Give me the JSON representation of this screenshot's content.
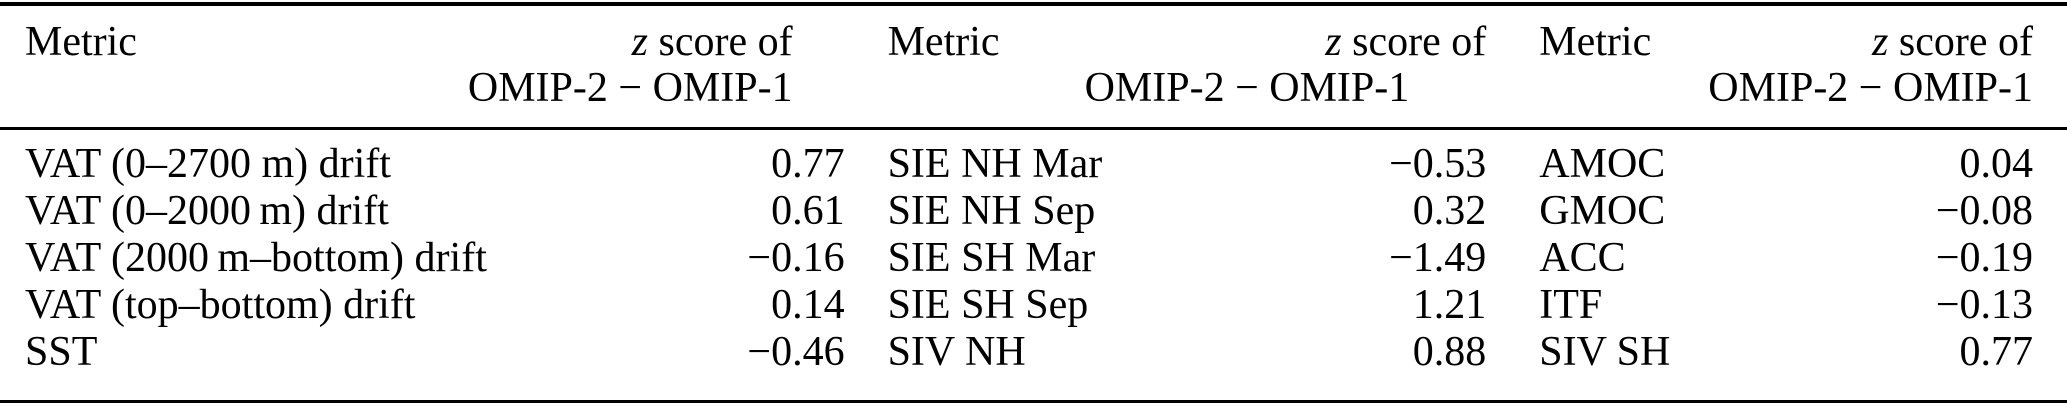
{
  "colors": {
    "background": "#ffffff",
    "text": "#000000",
    "rule": "#000000"
  },
  "table": {
    "zscore_header": {
      "z_symbol": "z",
      "line1_rest": " score of",
      "line2": "OMIP-2 − OMIP-1"
    },
    "groups": [
      {
        "metric_header": "Metric",
        "rows": [
          {
            "metric": "VAT (0–2700 m) drift",
            "value": "0.77"
          },
          {
            "metric": "VAT (0–2000 m) drift",
            "value": "0.61"
          },
          {
            "metric": "VAT (2000 m–bottom) drift",
            "value": "−0.16"
          },
          {
            "metric": "VAT (top–bottom) drift",
            "value": "0.14"
          },
          {
            "metric": "SST",
            "value": "−0.46"
          }
        ]
      },
      {
        "metric_header": "Metric",
        "rows": [
          {
            "metric": "SIE NH Mar",
            "value": "−0.53"
          },
          {
            "metric": "SIE NH Sep",
            "value": "0.32"
          },
          {
            "metric": "SIE SH Mar",
            "value": "−1.49"
          },
          {
            "metric": "SIE SH Sep",
            "value": "1.21"
          },
          {
            "metric": "SIV NH",
            "value": "0.88"
          }
        ]
      },
      {
        "metric_header": "Metric",
        "rows": [
          {
            "metric": "AMOC",
            "value": "0.04"
          },
          {
            "metric": "GMOC",
            "value": "−0.08"
          },
          {
            "metric": "ACC",
            "value": "−0.19"
          },
          {
            "metric": "ITF",
            "value": "−0.13"
          },
          {
            "metric": "SIV SH",
            "value": "0.77"
          }
        ]
      }
    ]
  }
}
